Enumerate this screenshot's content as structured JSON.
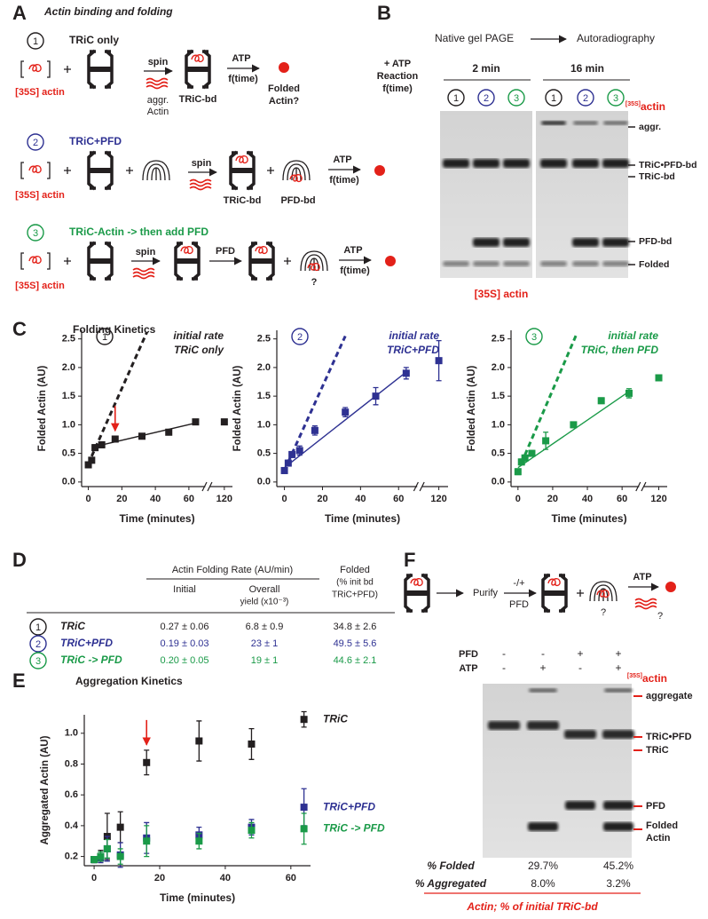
{
  "panel_letters": [
    "A",
    "B",
    "C",
    "D",
    "E",
    "F"
  ],
  "number_colors": {
    "1": "#231f20",
    "2": "#2e3192",
    "3": "#1a9a48"
  },
  "panel_a": {
    "title": "Actin binding and folding",
    "rows": [
      {
        "number": "1",
        "title": "TRiC only",
        "actin": "[35S] actin",
        "spin": "spin",
        "aggregate": [
          "aggr.",
          "Actin"
        ],
        "complex": "TRiC-bd",
        "atp": "ATP",
        "time": "f(time)",
        "product": [
          "Folded",
          "Actin?"
        ]
      },
      {
        "number": "2",
        "title": "TRiC+PFD",
        "actin": "[35S] actin",
        "spin": "spin",
        "complex": "TRiC-bd",
        "pfd": "PFD-bd",
        "atp": "ATP",
        "time": "f(time)"
      },
      {
        "number": "3",
        "title": "TRiC-Actin -> then add PFD",
        "actin": "[35S] actin",
        "spin": "spin",
        "step": "PFD",
        "unknown": "?",
        "atp": "ATP",
        "time": "f(time)"
      }
    ]
  },
  "panel_b": {
    "steps": [
      "Native gel PAGE",
      "Autoradiography"
    ],
    "reaction": [
      "+ ATP",
      "Reaction",
      "f(time)"
    ],
    "times": [
      "2 min",
      "16 min"
    ],
    "lanes": [
      "1",
      "2",
      "3",
      "1",
      "2",
      "3"
    ],
    "isotope": "[35S]",
    "isotope_label": "actin",
    "bands": [
      "aggr.",
      "TRiC•PFD-bd",
      "TRiC-bd",
      "PFD-bd",
      "Folded"
    ],
    "caption": "[35S] actin"
  },
  "panel_c": {
    "title": "Folding Kinetics"
  },
  "table_d": {
    "group_header": "Actin Folding Rate (AU/min)",
    "columns": [
      [
        "Initial"
      ],
      [
        "Overall",
        "yield (x10⁻³)"
      ],
      [
        "Folded",
        "(% init bd",
        "TRiC+PFD)"
      ]
    ],
    "rows": [
      [
        "1",
        "TRiC",
        "0.27 ± 0.06",
        "6.8 ± 0.9",
        "34.8 ± 2.6"
      ],
      [
        "2",
        "TRiC+PFD",
        "0.19 ± 0.03",
        "23 ± 1",
        "49.5 ± 5.6"
      ],
      [
        "3",
        "TRiC -> PFD",
        "0.20 ± 0.05",
        "19 ± 1",
        "44.6 ± 2.1"
      ]
    ]
  },
  "panel_f": {
    "steps": [
      "Purify",
      "-/+",
      "PFD",
      "ATP"
    ],
    "questions": [
      "?",
      "?"
    ],
    "row_labels": [
      "PFD",
      "ATP"
    ],
    "pfd": [
      "-",
      "-",
      "+",
      "+"
    ],
    "atp": [
      "-",
      "+",
      "-",
      "+"
    ],
    "isotope": "[35S]",
    "isotope_label": "actin",
    "bands": [
      "aggregate",
      "TRiC•PFD",
      "TRiC",
      "PFD",
      [
        "Folded",
        "Actin"
      ]
    ],
    "stats": [
      {
        "label": "% Folded",
        "values": [
          "29.7%",
          "45.2%"
        ]
      },
      {
        "label": "% Aggregated",
        "values": [
          "8.0%",
          "3.2%"
        ]
      }
    ],
    "caption": "Actin; % of initial TRiC-bd"
  },
  "chart_data": [
    {
      "type": "scatter",
      "marker": "1",
      "annotations": [
        "initial rate",
        "TRiC only"
      ],
      "x_label": "Time (minutes)",
      "y_label": "Folded Actin (AU)",
      "xlim": [
        -4,
        125
      ],
      "xbreak": [
        68,
        112
      ],
      "xticks": [
        0,
        20,
        40,
        60,
        120
      ],
      "ylim": [
        -0.08,
        2.65
      ],
      "yticks": [
        {
          "value": 0,
          "label": "0.0"
        },
        0.5,
        {
          "value": 1,
          "label": "1.0"
        },
        1.5,
        {
          "value": 2,
          "label": "2.0"
        },
        2.5
      ],
      "arrow_x": 16,
      "series": [
        {
          "color": "#231f20",
          "x": [
            0,
            2,
            4,
            8,
            16,
            32,
            48,
            64,
            120
          ],
          "values": [
            0.3,
            0.38,
            0.6,
            0.65,
            0.75,
            0.8,
            0.87,
            1.05,
            1.05
          ],
          "errors": [
            0.04,
            0.04,
            0.05,
            0.05,
            0.05,
            0.04,
            0.04,
            0.04,
            0.04
          ]
        }
      ],
      "lines": [
        {
          "style": "solid",
          "color": "#231f20",
          "x": [
            4,
            64
          ],
          "values": [
            0.62,
            1.03
          ]
        },
        {
          "style": "dashed",
          "color": "#231f20",
          "x": [
            2,
            35
          ],
          "values": [
            0.45,
            2.62
          ]
        }
      ]
    },
    {
      "type": "scatter",
      "marker": "2",
      "annotations": [
        "initial rate",
        "TRiC+PFD"
      ],
      "x_label": "Time (minutes)",
      "y_label": "Folded Actin (AU)",
      "xlim": [
        -4,
        125
      ],
      "xbreak": [
        68,
        112
      ],
      "xticks": [
        0,
        20,
        40,
        60,
        120
      ],
      "ylim": [
        -0.08,
        2.65
      ],
      "yticks": [
        {
          "value": 0,
          "label": "0.0"
        },
        0.5,
        {
          "value": 1,
          "label": "1.0"
        },
        1.5,
        {
          "value": 2,
          "label": "2.0"
        },
        2.5
      ],
      "series": [
        {
          "color": "#2e3192",
          "x": [
            0,
            2,
            4,
            8,
            16,
            32,
            48,
            64,
            120
          ],
          "values": [
            0.2,
            0.33,
            0.48,
            0.55,
            0.9,
            1.22,
            1.5,
            1.9,
            2.12
          ],
          "errors": [
            0.05,
            0.05,
            0.05,
            0.08,
            0.08,
            0.08,
            0.15,
            0.1,
            0.35
          ]
        }
      ],
      "lines": [
        {
          "style": "solid",
          "color": "#2e3192",
          "x": [
            0,
            64
          ],
          "values": [
            0.25,
            1.92
          ]
        },
        {
          "style": "dashed",
          "color": "#2e3192",
          "x": [
            2,
            32
          ],
          "values": [
            0.35,
            2.55
          ]
        }
      ]
    },
    {
      "type": "scatter",
      "marker": "3",
      "annotations": [
        "initial rate",
        "TRiC, then PFD"
      ],
      "x_label": "Time (minutes)",
      "y_label": "Folded Actin (AU)",
      "xlim": [
        -4,
        125
      ],
      "xbreak": [
        68,
        112
      ],
      "xticks": [
        0,
        20,
        40,
        60,
        120
      ],
      "ylim": [
        -0.08,
        2.65
      ],
      "yticks": [
        {
          "value": 0,
          "label": "0.0"
        },
        0.5,
        {
          "value": 1,
          "label": "1.0"
        },
        1.5,
        {
          "value": 2,
          "label": "2.0"
        },
        2.5
      ],
      "series": [
        {
          "color": "#1a9a48",
          "x": [
            0,
            2,
            4,
            8,
            16,
            32,
            48,
            64,
            120
          ],
          "values": [
            0.18,
            0.35,
            0.42,
            0.5,
            0.72,
            1.0,
            1.42,
            1.55,
            1.82
          ],
          "errors": [
            0.05,
            0.05,
            0.05,
            0.05,
            0.15,
            0.05,
            0.05,
            0.08,
            0.03
          ]
        }
      ],
      "lines": [
        {
          "style": "solid",
          "color": "#1a9a48",
          "x": [
            0,
            64
          ],
          "values": [
            0.25,
            1.58
          ]
        },
        {
          "style": "dashed",
          "color": "#1a9a48",
          "x": [
            2,
            34
          ],
          "values": [
            0.33,
            2.6
          ]
        }
      ]
    },
    {
      "type": "scatter",
      "title": "Aggregation Kinetics",
      "x_label": "Time (minutes)",
      "y_label": "Aggregated Actin (AU)",
      "xlim": [
        -3,
        66
      ],
      "xticks": [
        0,
        20,
        40,
        60
      ],
      "ylim": [
        0.14,
        1.12
      ],
      "yticks": [
        0.2,
        0.4,
        0.6,
        0.8,
        {
          "value": 1,
          "label": "1.0"
        }
      ],
      "arrow_x": 16,
      "series": [
        {
          "name": "TRiC",
          "color": "#231f20",
          "x": [
            0,
            2,
            4,
            8,
            16,
            32,
            48,
            64
          ],
          "values": [
            0.18,
            0.2,
            0.33,
            0.39,
            0.81,
            0.95,
            0.93,
            1.09
          ],
          "errors": [
            0.02,
            0.04,
            0.15,
            0.1,
            0.08,
            0.13,
            0.1,
            0.05
          ]
        },
        {
          "name": "TRiC+PFD",
          "color": "#2e3192",
          "x": [
            0,
            2,
            4,
            8,
            16,
            32,
            48,
            64
          ],
          "values": [
            0.18,
            0.19,
            0.25,
            0.21,
            0.32,
            0.34,
            0.39,
            0.52
          ],
          "errors": [
            0.02,
            0.03,
            0.08,
            0.08,
            0.1,
            0.05,
            0.05,
            0.12
          ]
        },
        {
          "name": "TRiC -> PFD",
          "color": "#1a9a48",
          "x": [
            0,
            2,
            4,
            8,
            16,
            32,
            48,
            64
          ],
          "values": [
            0.18,
            0.2,
            0.25,
            0.2,
            0.3,
            0.3,
            0.37,
            0.38
          ],
          "errors": [
            0.02,
            0.03,
            0.06,
            0.05,
            0.1,
            0.05,
            0.05,
            0.1
          ]
        }
      ]
    }
  ]
}
